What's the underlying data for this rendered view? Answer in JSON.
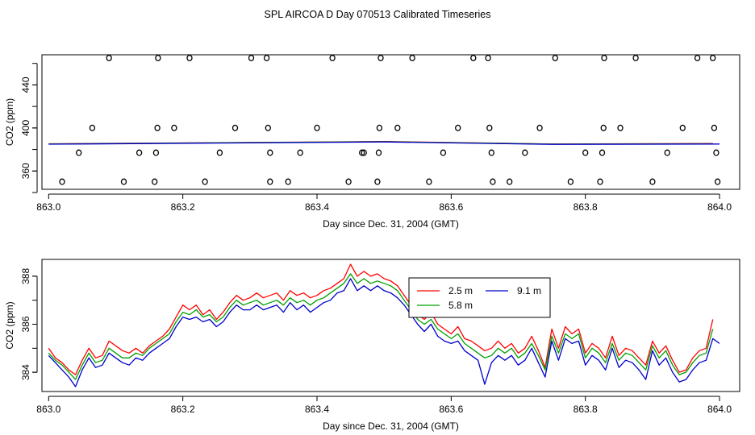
{
  "title": "SPL AIRCOA D  Day 070513  Calibrated Timeseries",
  "chart_data": [
    {
      "type": "scatter",
      "xlabel": "Day since Dec. 31, 2004 (GMT)",
      "ylabel": "CO2 (ppm)",
      "xlim": [
        862.99,
        864.03
      ],
      "ylim": [
        343,
        468
      ],
      "xticks": [
        863.0,
        863.2,
        863.4,
        863.6,
        863.8,
        864.0
      ],
      "xtick_labels": [
        "863.0",
        "863.2",
        "863.4",
        "863.6",
        "863.8",
        "864.0"
      ],
      "yticks": [
        360,
        400,
        440
      ],
      "ytick_labels": [
        "360",
        "400",
        "440"
      ],
      "points": [
        [
          863.02,
          350
        ],
        [
          863.045,
          377
        ],
        [
          863.065,
          400
        ],
        [
          863.09,
          465
        ],
        [
          863.112,
          350
        ],
        [
          863.135,
          377
        ],
        [
          863.158,
          350
        ],
        [
          863.16,
          377
        ],
        [
          863.162,
          400
        ],
        [
          863.163,
          465
        ],
        [
          863.187,
          400
        ],
        [
          863.21,
          465
        ],
        [
          863.233,
          350
        ],
        [
          863.255,
          377
        ],
        [
          863.278,
          400
        ],
        [
          863.302,
          465
        ],
        [
          863.325,
          465
        ],
        [
          863.327,
          400
        ],
        [
          863.33,
          377
        ],
        [
          863.33,
          350
        ],
        [
          863.357,
          350
        ],
        [
          863.375,
          377
        ],
        [
          863.4,
          400
        ],
        [
          863.423,
          465
        ],
        [
          863.447,
          350
        ],
        [
          863.467,
          377
        ],
        [
          863.47,
          377
        ],
        [
          863.49,
          350
        ],
        [
          863.492,
          377
        ],
        [
          863.493,
          400
        ],
        [
          863.495,
          465
        ],
        [
          863.52,
          400
        ],
        [
          863.542,
          465
        ],
        [
          863.567,
          350
        ],
        [
          863.588,
          377
        ],
        [
          863.61,
          400
        ],
        [
          863.633,
          465
        ],
        [
          863.655,
          465
        ],
        [
          863.657,
          400
        ],
        [
          863.66,
          377
        ],
        [
          863.662,
          350
        ],
        [
          863.687,
          350
        ],
        [
          863.71,
          377
        ],
        [
          863.732,
          400
        ],
        [
          863.755,
          465
        ],
        [
          863.778,
          350
        ],
        [
          863.8,
          377
        ],
        [
          863.822,
          350
        ],
        [
          863.825,
          377
        ],
        [
          863.827,
          400
        ],
        [
          863.828,
          465
        ],
        [
          863.852,
          400
        ],
        [
          863.875,
          465
        ],
        [
          863.9,
          350
        ],
        [
          863.922,
          377
        ],
        [
          863.945,
          400
        ],
        [
          863.967,
          465
        ],
        [
          863.99,
          465
        ],
        [
          863.992,
          400
        ],
        [
          863.995,
          377
        ],
        [
          863.997,
          350
        ]
      ],
      "series": [
        {
          "name": "2.5 m",
          "color": "#ff0000",
          "x": [
            863.0,
            863.25,
            863.5,
            863.75,
            863.99
          ],
          "values": [
            385.3,
            386.3,
            387.4,
            385.1,
            385.5
          ]
        },
        {
          "name": "5.8 m",
          "color": "#00a000",
          "x": [
            863.0,
            863.25,
            863.5,
            863.75,
            863.99
          ],
          "values": [
            385.1,
            386.2,
            387.2,
            385.0,
            385.3
          ]
        },
        {
          "name": "9.1 m",
          "color": "#0000cc",
          "x": [
            863.0,
            863.25,
            863.5,
            863.75,
            864.0
          ],
          "values": [
            384.9,
            386.0,
            387.0,
            384.8,
            385.1
          ]
        }
      ]
    },
    {
      "type": "line",
      "xlabel": "Day since Dec. 31, 2004 (GMT)",
      "ylabel": "CO2 (ppm)",
      "xlim": [
        862.99,
        864.03
      ],
      "ylim": [
        383.2,
        388.7
      ],
      "xticks": [
        863.0,
        863.2,
        863.4,
        863.6,
        863.8,
        864.0
      ],
      "xtick_labels": [
        "863.0",
        "863.2",
        "863.4",
        "863.6",
        "863.8",
        "864.0"
      ],
      "yticks": [
        384,
        386,
        388
      ],
      "ytick_labels": [
        "384",
        "386",
        "388"
      ],
      "legend": {
        "position": "top-right",
        "entries": [
          "2.5 m",
          "5.8 m",
          "9.1 m"
        ]
      },
      "series": [
        {
          "name": "2.5 m",
          "color": "#ff0000",
          "x": [
            863.0,
            863.01,
            863.02,
            863.03,
            863.04,
            863.05,
            863.06,
            863.07,
            863.08,
            863.09,
            863.1,
            863.11,
            863.12,
            863.13,
            863.14,
            863.15,
            863.16,
            863.17,
            863.18,
            863.19,
            863.2,
            863.21,
            863.22,
            863.23,
            863.24,
            863.25,
            863.26,
            863.27,
            863.28,
            863.29,
            863.3,
            863.31,
            863.32,
            863.33,
            863.34,
            863.35,
            863.36,
            863.37,
            863.38,
            863.39,
            863.4,
            863.41,
            863.42,
            863.43,
            863.44,
            863.45,
            863.46,
            863.47,
            863.48,
            863.49,
            863.5,
            863.51,
            863.52,
            863.53,
            863.54,
            863.55,
            863.56,
            863.57,
            863.58,
            863.59,
            863.6,
            863.61,
            863.62,
            863.63,
            863.64,
            863.65,
            863.66,
            863.67,
            863.68,
            863.69,
            863.7,
            863.71,
            863.72,
            863.73,
            863.74,
            863.75,
            863.76,
            863.77,
            863.78,
            863.79,
            863.8,
            863.81,
            863.82,
            863.83,
            863.84,
            863.85,
            863.86,
            863.87,
            863.88,
            863.89,
            863.9,
            863.91,
            863.92,
            863.93,
            863.94,
            863.95,
            863.96,
            863.97,
            863.98,
            863.99
          ],
          "values": [
            385.0,
            384.6,
            384.4,
            384.1,
            383.9,
            384.5,
            385.0,
            384.6,
            384.7,
            385.3,
            385.1,
            384.9,
            384.8,
            385.0,
            384.8,
            385.1,
            385.3,
            385.5,
            385.8,
            386.3,
            386.8,
            386.6,
            386.8,
            386.4,
            386.6,
            386.2,
            386.5,
            386.9,
            387.2,
            387.0,
            387.1,
            387.3,
            387.1,
            387.2,
            387.3,
            387.0,
            387.4,
            387.2,
            387.3,
            387.1,
            387.2,
            387.4,
            387.5,
            387.7,
            387.9,
            388.5,
            388.0,
            388.2,
            388.0,
            388.1,
            387.9,
            387.8,
            387.6,
            387.2,
            386.8,
            386.4,
            386.2,
            386.5,
            386.0,
            385.8,
            385.6,
            385.9,
            385.4,
            385.3,
            385.1,
            384.9,
            385.0,
            385.3,
            385.0,
            385.2,
            384.8,
            385.0,
            385.5,
            384.9,
            384.2,
            385.8,
            385.0,
            385.9,
            385.6,
            385.8,
            384.8,
            385.2,
            385.0,
            384.6,
            385.5,
            384.7,
            385.0,
            384.9,
            384.6,
            384.3,
            385.3,
            384.8,
            385.1,
            384.5,
            384.0,
            384.1,
            384.6,
            384.9,
            385.0,
            386.2
          ]
        },
        {
          "name": "5.8 m",
          "color": "#00a000",
          "x": [
            863.0,
            863.01,
            863.02,
            863.03,
            863.04,
            863.05,
            863.06,
            863.07,
            863.08,
            863.09,
            863.1,
            863.11,
            863.12,
            863.13,
            863.14,
            863.15,
            863.16,
            863.17,
            863.18,
            863.19,
            863.2,
            863.21,
            863.22,
            863.23,
            863.24,
            863.25,
            863.26,
            863.27,
            863.28,
            863.29,
            863.3,
            863.31,
            863.32,
            863.33,
            863.34,
            863.35,
            863.36,
            863.37,
            863.38,
            863.39,
            863.4,
            863.41,
            863.42,
            863.43,
            863.44,
            863.45,
            863.46,
            863.47,
            863.48,
            863.49,
            863.5,
            863.51,
            863.52,
            863.53,
            863.54,
            863.55,
            863.56,
            863.57,
            863.58,
            863.59,
            863.6,
            863.61,
            863.62,
            863.63,
            863.64,
            863.65,
            863.66,
            863.67,
            863.68,
            863.69,
            863.7,
            863.71,
            863.72,
            863.73,
            863.74,
            863.75,
            863.76,
            863.77,
            863.78,
            863.79,
            863.8,
            863.81,
            863.82,
            863.83,
            863.84,
            863.85,
            863.86,
            863.87,
            863.88,
            863.89,
            863.9,
            863.91,
            863.92,
            863.93,
            863.94,
            863.95,
            863.96,
            863.97,
            863.98,
            863.99
          ],
          "values": [
            384.8,
            384.5,
            384.3,
            384.0,
            383.7,
            384.3,
            384.8,
            384.4,
            384.5,
            385.0,
            384.8,
            384.6,
            384.6,
            384.8,
            384.7,
            385.0,
            385.2,
            385.4,
            385.6,
            386.1,
            386.5,
            386.4,
            386.6,
            386.3,
            386.4,
            386.1,
            386.3,
            386.7,
            387.0,
            386.8,
            386.9,
            387.0,
            386.8,
            386.9,
            387.0,
            386.8,
            387.1,
            386.9,
            387.0,
            386.8,
            387.0,
            387.1,
            387.3,
            387.5,
            387.7,
            388.1,
            387.7,
            387.9,
            387.7,
            387.8,
            387.7,
            387.6,
            387.4,
            387.0,
            386.6,
            386.2,
            386.0,
            386.2,
            385.8,
            385.6,
            385.4,
            385.6,
            385.2,
            385.0,
            384.8,
            384.6,
            384.7,
            385.0,
            384.8,
            385.0,
            384.6,
            384.8,
            385.2,
            384.7,
            384.1,
            385.5,
            384.8,
            385.6,
            385.4,
            385.6,
            384.6,
            385.0,
            384.8,
            384.4,
            385.2,
            384.5,
            384.8,
            384.7,
            384.4,
            384.1,
            385.1,
            384.6,
            384.9,
            384.3,
            383.9,
            384.0,
            384.4,
            384.7,
            384.8,
            385.8
          ]
        },
        {
          "name": "9.1 m",
          "color": "#0000cc",
          "x": [
            863.0,
            863.01,
            863.02,
            863.03,
            863.04,
            863.05,
            863.06,
            863.07,
            863.08,
            863.09,
            863.1,
            863.11,
            863.12,
            863.13,
            863.14,
            863.15,
            863.16,
            863.17,
            863.18,
            863.19,
            863.2,
            863.21,
            863.22,
            863.23,
            863.24,
            863.25,
            863.26,
            863.27,
            863.28,
            863.29,
            863.3,
            863.31,
            863.32,
            863.33,
            863.34,
            863.35,
            863.36,
            863.37,
            863.38,
            863.39,
            863.4,
            863.41,
            863.42,
            863.43,
            863.44,
            863.45,
            863.46,
            863.47,
            863.48,
            863.49,
            863.5,
            863.51,
            863.52,
            863.53,
            863.54,
            863.55,
            863.56,
            863.57,
            863.58,
            863.59,
            863.6,
            863.61,
            863.62,
            863.63,
            863.64,
            863.65,
            863.66,
            863.67,
            863.68,
            863.69,
            863.7,
            863.71,
            863.72,
            863.73,
            863.74,
            863.75,
            863.76,
            863.77,
            863.78,
            863.79,
            863.8,
            863.81,
            863.82,
            863.83,
            863.84,
            863.85,
            863.86,
            863.87,
            863.88,
            863.89,
            863.9,
            863.91,
            863.92,
            863.93,
            863.94,
            863.95,
            863.96,
            863.97,
            863.98,
            863.99,
            864.0
          ],
          "values": [
            384.7,
            384.4,
            384.1,
            383.8,
            383.4,
            384.1,
            384.6,
            384.2,
            384.3,
            384.8,
            384.6,
            384.4,
            384.3,
            384.6,
            384.5,
            384.8,
            385.0,
            385.2,
            385.4,
            385.9,
            386.3,
            386.2,
            386.3,
            386.1,
            386.2,
            385.9,
            386.1,
            386.5,
            386.8,
            386.6,
            386.6,
            386.8,
            386.6,
            386.7,
            386.8,
            386.5,
            386.9,
            386.6,
            386.8,
            386.5,
            386.7,
            386.9,
            387.0,
            387.3,
            387.4,
            387.9,
            387.4,
            387.6,
            387.4,
            387.6,
            387.4,
            387.3,
            387.1,
            386.8,
            386.4,
            386.0,
            385.7,
            386.0,
            385.5,
            385.3,
            385.2,
            385.3,
            384.9,
            384.7,
            384.5,
            383.5,
            384.4,
            384.7,
            384.5,
            384.7,
            384.3,
            384.5,
            385.0,
            384.4,
            383.8,
            385.3,
            384.5,
            385.4,
            385.2,
            385.3,
            384.3,
            384.7,
            384.5,
            384.1,
            385.0,
            384.2,
            384.5,
            384.4,
            384.1,
            383.7,
            384.9,
            384.3,
            384.6,
            384.0,
            383.6,
            383.7,
            384.1,
            384.4,
            384.5,
            385.4,
            385.2
          ]
        }
      ]
    }
  ]
}
